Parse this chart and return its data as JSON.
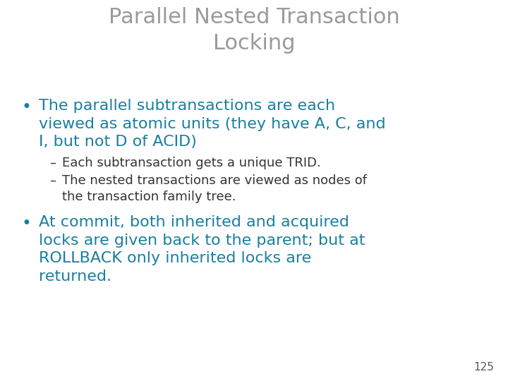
{
  "title_line1": "Parallel Nested Transaction",
  "title_line2": "Locking",
  "title_color": "#9a9a9a",
  "title_fontsize": 22,
  "background_color": "#ffffff",
  "bullet_color": "#1a7fa0",
  "bullet_fontsize": 16,
  "sub_color": "#333333",
  "sub_fontsize": 13,
  "page_number": "125",
  "page_color": "#555555",
  "page_fontsize": 11,
  "bullet1_lines": [
    "The parallel subtransactions are each",
    "viewed as atomic units (they have A, C, and",
    "I, but not D of ACID)"
  ],
  "sub1": "Each subtransaction gets a unique TRID.",
  "sub2_lines": [
    "The nested transactions are viewed as nodes of",
    "the transaction family tree."
  ],
  "bullet2_lines": [
    "At commit, both inherited and acquired",
    "locks are given back to the parent; but at",
    "ROLLBACK only inherited locks are",
    "returned."
  ]
}
